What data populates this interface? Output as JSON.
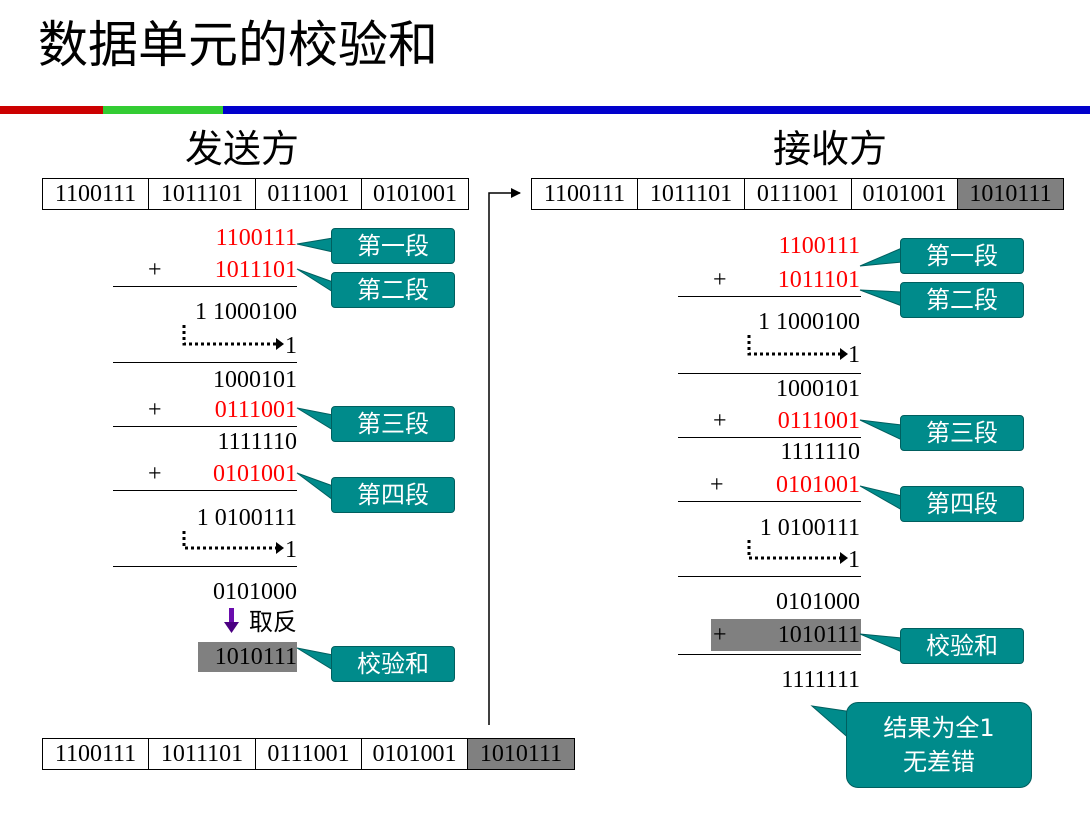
{
  "title": "数据单元的校验和",
  "colors": {
    "bar_red": "#cc0000",
    "bar_green": "#33cc33",
    "bar_blue": "#0000cc",
    "callout": "#008b8b",
    "highlight": "#808080",
    "segment_text_red": "#ff0000"
  },
  "sender": {
    "heading": "发送方",
    "top_segments": [
      "1100111",
      "1011101",
      "0111001",
      "0101001"
    ],
    "bottom_segments": [
      "1100111",
      "1011101",
      "0111001",
      "0101001",
      "1010111"
    ],
    "steps": {
      "seg1": "1100111",
      "seg2": "1011101",
      "sum1": "1 1000100",
      "carry1": "1",
      "res1": "1000101",
      "seg3": "0111001",
      "sum2": "1111110",
      "seg4": "0101001",
      "sum3": "1 0100111",
      "carry2": "1",
      "res2": "0101000",
      "invert_label": "取反",
      "checksum": "1010111"
    },
    "plus": "+",
    "callouts": [
      "第一段",
      "第二段",
      "第三段",
      "第四段",
      "校验和"
    ]
  },
  "receiver": {
    "heading": "接收方",
    "segments": [
      "1100111",
      "1011101",
      "0111001",
      "0101001",
      "1010111"
    ],
    "steps": {
      "seg1": "1100111",
      "seg2": "1011101",
      "sum1": "1 1000100",
      "carry1": "1",
      "res1": "1000101",
      "seg3": "0111001",
      "sum2": "1111110",
      "seg4": "0101001",
      "sum3": "1 0100111",
      "carry2": "1",
      "res2": "0101000",
      "checksum": "1010111",
      "final": "1111111"
    },
    "plus": "+",
    "callouts": [
      "第一段",
      "第二段",
      "第三段",
      "第四段",
      "校验和"
    ],
    "result_line1": "结果为全1",
    "result_line2": "无差错"
  }
}
